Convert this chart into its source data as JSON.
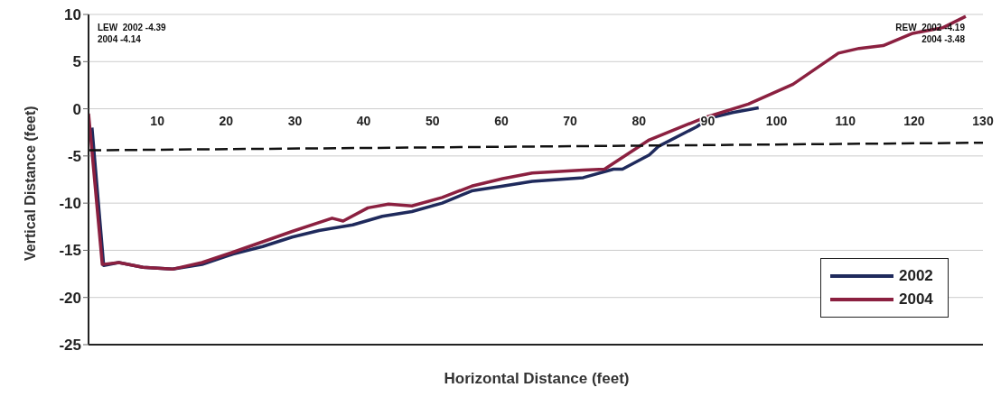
{
  "chart_data": {
    "type": "line",
    "xlabel": "Horizontal Distance (feet)",
    "ylabel": "Vertical Distance (feet)",
    "xlim": [
      0,
      130
    ],
    "xticks": [
      10,
      20,
      30,
      40,
      50,
      60,
      70,
      80,
      90,
      100,
      110,
      120,
      130
    ],
    "ylim": [
      -25,
      10
    ],
    "yticks": [
      -25,
      -20,
      -15,
      -10,
      -5,
      0,
      5,
      10
    ],
    "grid": "y",
    "legend": "bottom right",
    "marker": "none",
    "annotations": [
      "LEW  2002 -4.39\n2004 -4.14",
      "REW  2002 -4.19\n2004 -3.48"
    ],
    "series": [
      {
        "name": "2002",
        "color": "#1f2a5c",
        "line_style": "solid",
        "x": [
          0.5,
          2.2,
          4.4,
          7.9,
          12.2,
          16.5,
          21,
          25.3,
          29.6,
          33.5,
          38.4,
          42.7,
          47,
          51.4,
          55.7,
          60.2,
          64.5,
          71.9,
          76.3,
          77.6,
          81.5,
          82.8,
          88.4,
          90.2,
          93.6,
          97.4
        ],
        "values": [
          -2,
          -16.6,
          -16.3,
          -16.8,
          -17.0,
          -16.5,
          -15.4,
          -14.6,
          -13.6,
          -12.9,
          -12.3,
          -11.4,
          -10.9,
          -10.0,
          -8.7,
          -8.2,
          -7.7,
          -7.3,
          -6.4,
          -6.4,
          -4.9,
          -4.0,
          -1.9,
          -1.0,
          -0.4,
          0.1
        ]
      },
      {
        "name": "2004",
        "color": "#8b2040",
        "line_style": "solid",
        "x": [
          0,
          2,
          4.4,
          7.9,
          12.2,
          16.5,
          21,
          25.3,
          29.6,
          35.4,
          37,
          40.6,
          43.6,
          47,
          51.4,
          55.7,
          60.2,
          64.5,
          71.9,
          75,
          81.5,
          89.3,
          95.9,
          102.4,
          109,
          112,
          115.5,
          119.8,
          124.2,
          127.5
        ],
        "values": [
          -0.5,
          -16.5,
          -16.3,
          -16.8,
          -17.0,
          -16.3,
          -15.2,
          -14.1,
          -13.0,
          -11.6,
          -11.9,
          -10.5,
          -10.1,
          -10.3,
          -9.4,
          -8.2,
          -7.4,
          -6.8,
          -6.5,
          -6.4,
          -3.3,
          -1.0,
          0.5,
          2.6,
          5.9,
          6.4,
          6.7,
          8.0,
          8.6,
          9.8
        ]
      },
      {
        "color": "#111111",
        "line_style": "dashed",
        "x": [
          0,
          130
        ],
        "values": [
          -4.4,
          -3.6
        ]
      }
    ]
  }
}
